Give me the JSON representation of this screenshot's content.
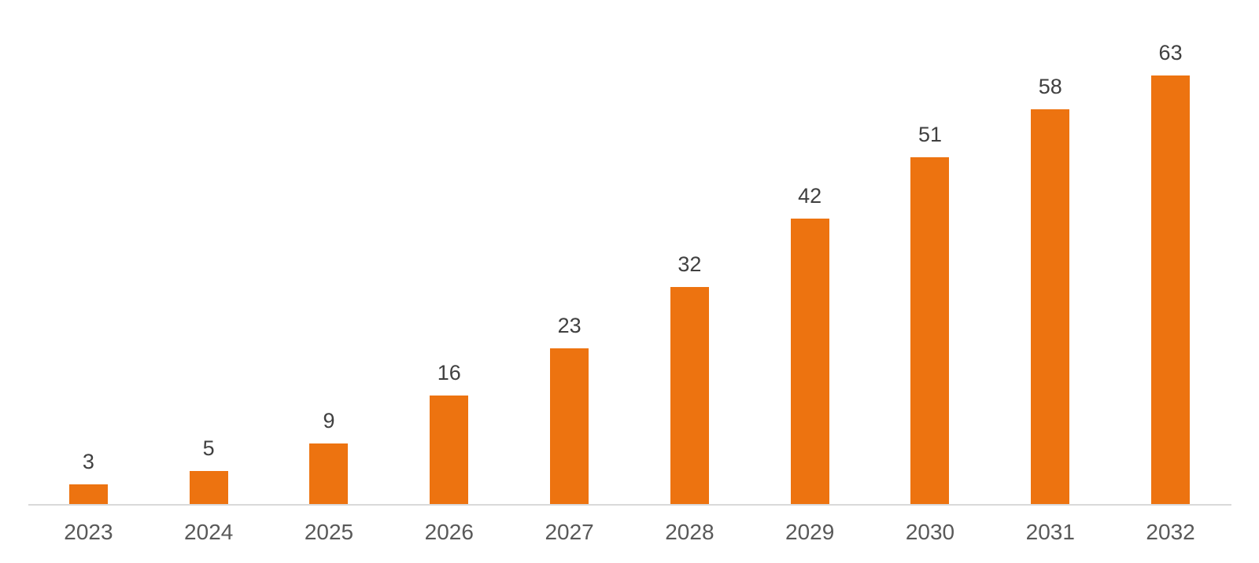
{
  "chart_data": {
    "type": "bar",
    "categories": [
      "2023",
      "2024",
      "2025",
      "2026",
      "2027",
      "2028",
      "2029",
      "2030",
      "2031",
      "2032"
    ],
    "values": [
      3,
      5,
      9,
      16,
      23,
      32,
      42,
      51,
      58,
      63
    ],
    "title": "",
    "xlabel": "",
    "ylabel": "",
    "ylim": [
      0,
      74
    ],
    "grid": false,
    "legend": false,
    "data_labels_shown": true,
    "bar_color": "#ED7310",
    "data_label_color": "#404040",
    "axis_label_color": "#595959",
    "axis_line_color": "#D9D9D9",
    "background_color": "#FFFFFF"
  }
}
